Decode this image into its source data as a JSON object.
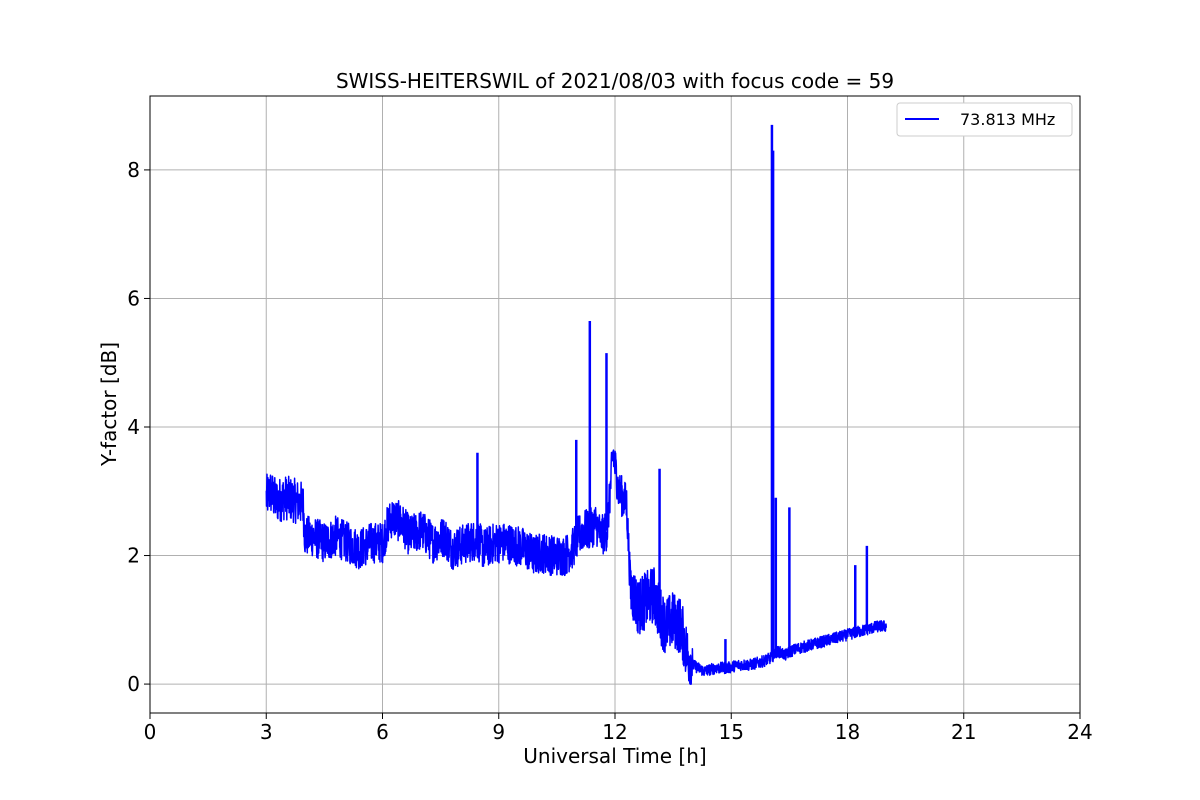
{
  "chart_data": {
    "type": "line",
    "title": "SWISS-HEITERSWIL of 2021/08/03 with focus code = 59",
    "xlabel": "Universal Time [h]",
    "ylabel": "Y-factor [dB]",
    "xlim": [
      0,
      24
    ],
    "ylim": [
      -0.45,
      9.15
    ],
    "xticks": [
      0,
      3,
      6,
      9,
      12,
      15,
      18,
      21,
      24
    ],
    "yticks": [
      0,
      2,
      4,
      6,
      8
    ],
    "grid": true,
    "legend_position": "top-right",
    "series": [
      {
        "name": "73.813 MHz",
        "color": "#0000ff",
        "x": [
          3.0,
          3.1,
          3.25,
          3.5,
          3.75,
          3.95,
          4.0,
          4.2,
          4.5,
          4.8,
          5.1,
          5.4,
          5.7,
          6.0,
          6.15,
          6.25,
          6.5,
          6.7,
          7.0,
          7.3,
          7.6,
          7.8,
          8.0,
          8.2,
          8.45,
          8.6,
          8.9,
          9.2,
          9.5,
          9.7,
          9.9,
          10.1,
          10.4,
          10.7,
          10.9,
          11.05,
          11.2,
          11.35,
          11.5,
          11.65,
          11.8,
          11.95,
          12.1,
          12.3,
          12.4,
          12.6,
          12.8,
          13.0,
          13.15,
          13.3,
          13.5,
          13.7,
          13.85,
          14.0,
          14.3,
          14.6,
          14.9,
          15.2,
          15.5,
          15.8,
          16.0,
          16.1,
          16.15,
          16.25,
          16.4,
          16.5,
          16.7,
          17.0,
          17.3,
          17.6,
          17.9,
          18.2,
          18.5,
          18.8,
          19.0
        ],
        "y": [
          2.9,
          3.0,
          2.85,
          2.9,
          2.85,
          2.8,
          2.3,
          2.3,
          2.2,
          2.3,
          2.2,
          2.1,
          2.2,
          2.2,
          2.5,
          2.6,
          2.5,
          2.3,
          2.4,
          2.2,
          2.3,
          2.1,
          2.15,
          2.2,
          2.25,
          2.1,
          2.2,
          2.2,
          2.15,
          2.1,
          2.0,
          2.05,
          2.0,
          2.0,
          2.1,
          2.3,
          2.4,
          2.4,
          2.5,
          2.3,
          2.4,
          3.6,
          3.0,
          2.8,
          1.5,
          1.2,
          1.3,
          1.4,
          1.1,
          0.9,
          1.0,
          0.9,
          0.5,
          0.3,
          0.2,
          0.25,
          0.25,
          0.3,
          0.3,
          0.35,
          0.4,
          0.45,
          0.5,
          0.5,
          0.45,
          0.5,
          0.55,
          0.6,
          0.65,
          0.7,
          0.75,
          0.8,
          0.85,
          0.9,
          0.9
        ],
        "spikes": [
          {
            "x": 8.45,
            "y": 3.6
          },
          {
            "x": 11.0,
            "y": 3.8
          },
          {
            "x": 11.35,
            "y": 5.65
          },
          {
            "x": 11.78,
            "y": 5.15
          },
          {
            "x": 13.15,
            "y": 3.35
          },
          {
            "x": 16.05,
            "y": 8.7
          },
          {
            "x": 16.08,
            "y": 8.3
          },
          {
            "x": 16.15,
            "y": 2.9
          },
          {
            "x": 16.5,
            "y": 2.75
          },
          {
            "x": 18.2,
            "y": 1.85
          },
          {
            "x": 18.5,
            "y": 2.15
          },
          {
            "x": 14.85,
            "y": 0.7
          }
        ]
      }
    ]
  }
}
